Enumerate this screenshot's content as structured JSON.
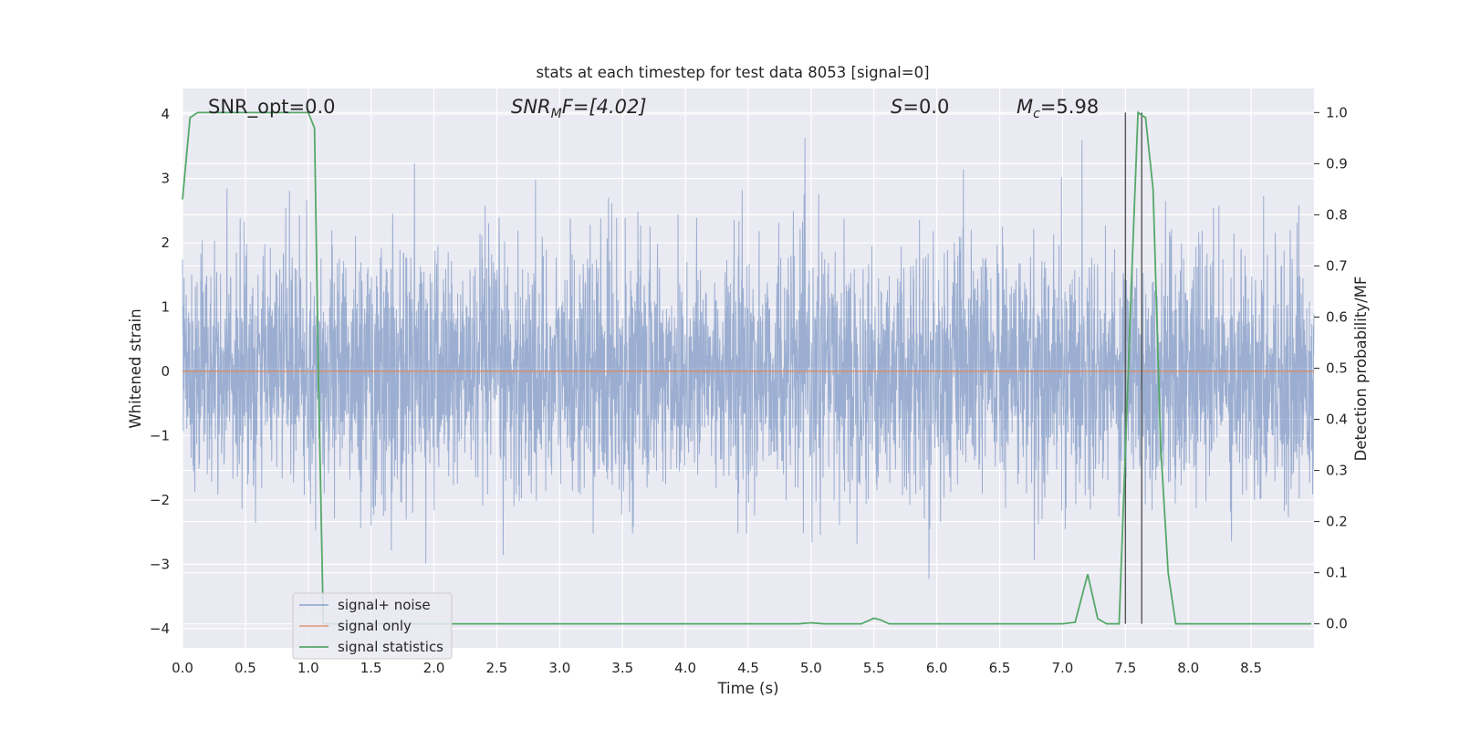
{
  "chart_data": {
    "type": "line",
    "title": "stats at each timestep for test data 8053 [signal=0]",
    "xlabel": "Time (s)",
    "ylabel": "Whitened strain",
    "y2label": "Detection probability/MF",
    "xlim": [
      0.0,
      9.0
    ],
    "ylim": [
      -4.3,
      4.4
    ],
    "y2lim": [
      -0.047,
      1.047
    ],
    "xticks": [
      "0.0",
      "0.5",
      "1.0",
      "1.5",
      "2.0",
      "2.5",
      "3.0",
      "3.5",
      "4.0",
      "4.5",
      "5.0",
      "5.5",
      "6.0",
      "6.5",
      "7.0",
      "7.5",
      "8.0",
      "8.5"
    ],
    "yticks": [
      "4",
      "3",
      "2",
      "1",
      "0",
      "−1",
      "−2",
      "−3",
      "−4"
    ],
    "y2ticks": [
      "1.0",
      "0.9",
      "0.8",
      "0.7",
      "0.6",
      "0.5",
      "0.4",
      "0.3",
      "0.2",
      "0.1",
      "0.0"
    ],
    "grid": true,
    "legend_position": "lower-left",
    "annotations": {
      "snr_opt": "SNR_opt=0.0",
      "snr_mf_symbol": "SNR",
      "snr_mf_sub": "M",
      "snr_mf_rest": "F=[4.02]",
      "s_symbol": "S",
      "s_rest": "=0.0",
      "mc_symbol": "M",
      "mc_sub": "c",
      "mc_rest": "=5.98"
    },
    "series": [
      {
        "name": "signal+ noise",
        "color": "#4c72b0",
        "axis": "left",
        "noise_envelope": {
          "typical_band": [
            -1.6,
            1.6
          ],
          "peak_max": 4.0,
          "peak_min": -3.6,
          "duration_s": 9.0
        }
      },
      {
        "name": "signal only",
        "color": "#dd8452",
        "axis": "left",
        "x": [
          0.0,
          9.0
        ],
        "y": [
          0.0,
          0.0
        ]
      },
      {
        "name": "signal statistics",
        "color": "#55a868",
        "axis": "right",
        "x": [
          0.0,
          0.06,
          0.12,
          0.2,
          0.3,
          0.5,
          0.7,
          0.9,
          1.0,
          1.05,
          1.08,
          1.12,
          1.2,
          1.5,
          2.0,
          3.0,
          4.0,
          4.9,
          5.0,
          5.1,
          5.4,
          5.5,
          5.55,
          5.62,
          5.8,
          6.5,
          7.0,
          7.1,
          7.2,
          7.28,
          7.35,
          7.45,
          7.55,
          7.6,
          7.66,
          7.72,
          7.78,
          7.84,
          7.9,
          8.2,
          8.5,
          8.98
        ],
        "y": [
          0.83,
          0.99,
          1.0,
          1.0,
          1.0,
          1.0,
          1.0,
          1.0,
          1.0,
          0.97,
          0.5,
          0.0,
          0.0,
          0.0,
          0.0,
          0.0,
          0.0,
          0.0,
          0.002,
          0.0,
          0.0,
          0.011,
          0.008,
          0.0,
          0.0,
          0.0,
          0.0,
          0.003,
          0.097,
          0.01,
          0.0,
          0.0,
          0.68,
          1.0,
          0.99,
          0.85,
          0.35,
          0.1,
          0.0,
          0.0,
          0.0,
          0.0
        ]
      }
    ],
    "vlines_detection_probability": [
      7.5,
      7.63
    ]
  }
}
